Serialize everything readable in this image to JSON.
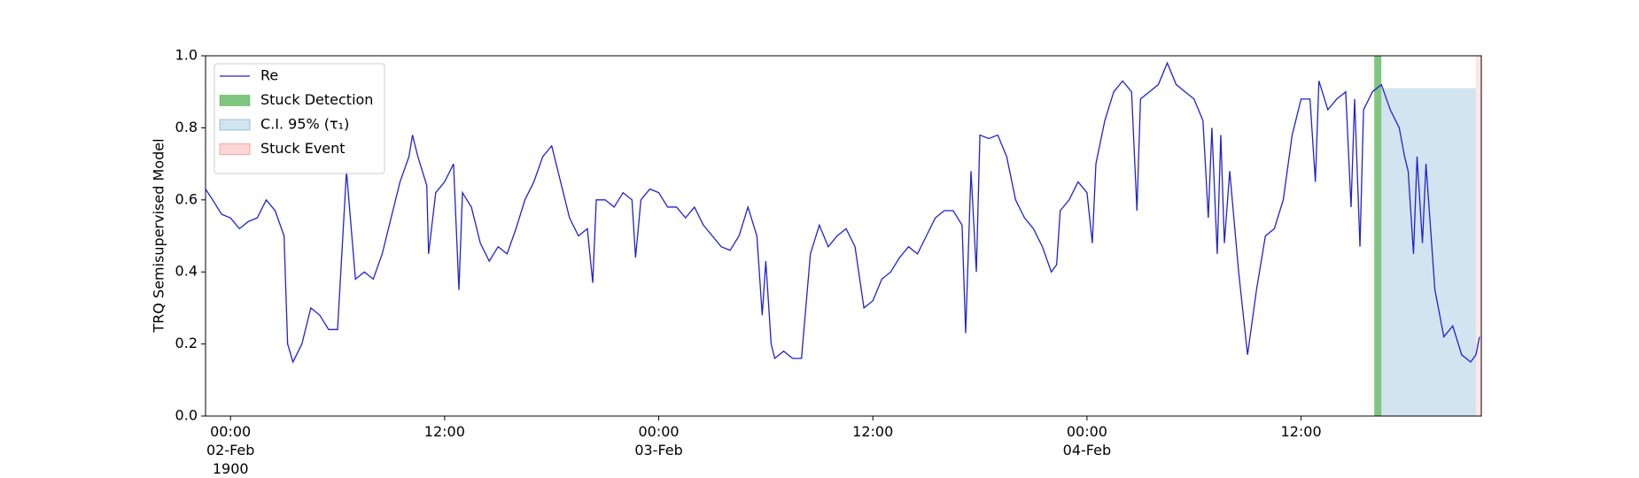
{
  "chart_data": {
    "type": "line",
    "ylabel": "TRQ Semisupervised Model",
    "xlim": [
      -1.4,
      70.1
    ],
    "xticks": [
      {
        "value": 0,
        "label": "00:00\n02-Feb\n1900"
      },
      {
        "value": 12,
        "label": "12:00"
      },
      {
        "value": 24,
        "label": "00:00\n03-Feb"
      },
      {
        "value": 36,
        "label": "12:00"
      },
      {
        "value": 48,
        "label": "00:00\n04-Feb"
      },
      {
        "value": 60,
        "label": "12:00"
      }
    ],
    "ylim": [
      0,
      1
    ],
    "yticks": [
      {
        "value": 0,
        "label": "0.0"
      },
      {
        "value": 0.2,
        "label": "0.2"
      },
      {
        "value": 0.4,
        "label": "0.4"
      },
      {
        "value": 0.6,
        "label": "0.6"
      },
      {
        "value": 0.8,
        "label": "0.8"
      },
      {
        "value": 1,
        "label": "1.0"
      }
    ],
    "legend": "upper left",
    "series": [
      {
        "name": "Re",
        "color": "#2222cc",
        "x": [
          -1.4,
          -1,
          -0.5,
          0,
          0.5,
          1,
          1.5,
          2,
          2.5,
          3,
          3.2,
          3.5,
          4,
          4.5,
          5,
          5.5,
          6,
          6.5,
          7,
          7.5,
          8,
          8.5,
          9,
          9.5,
          10,
          10.2,
          10.5,
          11,
          11.1,
          11.5,
          12,
          12.5,
          12.8,
          13,
          13.5,
          14,
          14.5,
          15,
          15.5,
          16,
          16.5,
          17,
          17.5,
          18,
          18.5,
          19,
          19.5,
          20,
          20.3,
          20.5,
          21,
          21.5,
          22,
          22.5,
          22.7,
          23,
          23.5,
          24,
          24.5,
          25,
          25.5,
          26,
          26.5,
          27,
          27.5,
          28,
          28.5,
          29,
          29.5,
          29.8,
          30,
          30.3,
          30.5,
          31,
          31.5,
          32,
          32.5,
          33,
          33.5,
          34,
          34.5,
          35,
          35.5,
          36,
          36.5,
          37,
          37.5,
          38,
          38.5,
          39,
          39.5,
          40,
          40.5,
          41,
          41.2,
          41.5,
          41.8,
          42,
          42.5,
          43,
          43.5,
          44,
          44.5,
          45,
          45.5,
          46,
          46.3,
          46.5,
          47,
          47.5,
          48,
          48.3,
          48.5,
          49,
          49.5,
          50,
          50.5,
          50.8,
          51,
          51.5,
          52,
          52.5,
          53,
          53.5,
          54,
          54.5,
          54.8,
          55,
          55.3,
          55.5,
          55.7,
          56,
          56.5,
          57,
          57.5,
          58,
          58.5,
          59,
          59.5,
          60,
          60.5,
          60.8,
          61,
          61.5,
          62,
          62.5,
          62.8,
          63,
          63.3,
          63.5,
          64,
          64.5,
          65,
          65.5,
          65.8,
          66,
          66.3,
          66.5,
          66.8,
          67,
          67.5,
          68,
          68.5,
          69,
          69.5,
          69.8,
          70
        ],
        "values": [
          0.63,
          0.6,
          0.56,
          0.55,
          0.52,
          0.54,
          0.55,
          0.6,
          0.57,
          0.5,
          0.2,
          0.15,
          0.2,
          0.3,
          0.28,
          0.24,
          0.24,
          0.68,
          0.38,
          0.4,
          0.38,
          0.45,
          0.55,
          0.65,
          0.72,
          0.78,
          0.72,
          0.64,
          0.45,
          0.62,
          0.65,
          0.7,
          0.35,
          0.62,
          0.58,
          0.48,
          0.43,
          0.47,
          0.45,
          0.52,
          0.6,
          0.65,
          0.72,
          0.75,
          0.65,
          0.55,
          0.5,
          0.52,
          0.37,
          0.6,
          0.6,
          0.58,
          0.62,
          0.6,
          0.44,
          0.6,
          0.63,
          0.62,
          0.58,
          0.58,
          0.55,
          0.58,
          0.53,
          0.5,
          0.47,
          0.46,
          0.5,
          0.58,
          0.5,
          0.28,
          0.43,
          0.2,
          0.16,
          0.18,
          0.16,
          0.16,
          0.45,
          0.53,
          0.47,
          0.5,
          0.52,
          0.47,
          0.3,
          0.32,
          0.38,
          0.4,
          0.44,
          0.47,
          0.45,
          0.5,
          0.55,
          0.57,
          0.57,
          0.53,
          0.23,
          0.68,
          0.4,
          0.78,
          0.77,
          0.78,
          0.72,
          0.6,
          0.55,
          0.52,
          0.47,
          0.4,
          0.42,
          0.57,
          0.6,
          0.65,
          0.62,
          0.48,
          0.7,
          0.82,
          0.9,
          0.93,
          0.9,
          0.57,
          0.88,
          0.9,
          0.92,
          0.98,
          0.92,
          0.9,
          0.88,
          0.82,
          0.55,
          0.8,
          0.45,
          0.78,
          0.48,
          0.68,
          0.4,
          0.17,
          0.35,
          0.5,
          0.52,
          0.6,
          0.78,
          0.88,
          0.88,
          0.65,
          0.93,
          0.85,
          0.88,
          0.9,
          0.58,
          0.88,
          0.47,
          0.85,
          0.9,
          0.92,
          0.85,
          0.8,
          0.72,
          0.68,
          0.45,
          0.72,
          0.48,
          0.7,
          0.35,
          0.22,
          0.25,
          0.17,
          0.15,
          0.17,
          0.22
        ]
      }
    ],
    "spans": [
      {
        "name": "Stuck Detection",
        "color": "#2ca02c",
        "x": [
          64.1,
          64.5
        ],
        "y": [
          0,
          1
        ]
      },
      {
        "name": "C.I. 95% (τ₁)",
        "color": "#1f77b4",
        "x": [
          64.5,
          69.8
        ],
        "y": [
          0,
          0.91
        ]
      },
      {
        "name": "Stuck Event",
        "color": "#ff3333",
        "x": [
          69.8,
          70.1
        ],
        "y": [
          0,
          1
        ]
      }
    ]
  }
}
